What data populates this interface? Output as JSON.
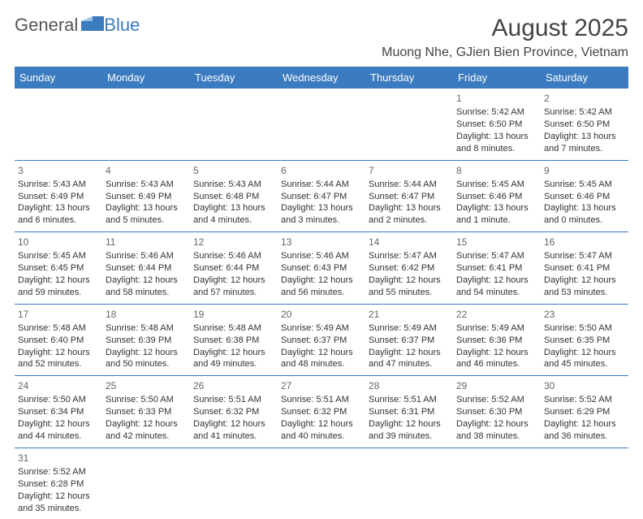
{
  "logo": {
    "partA": "General",
    "partB": "Blue"
  },
  "title": "August 2025",
  "location": "Muong Nhe, GJien Bien Province, Vietnam",
  "colors": {
    "header_bg": "#3b7bbf",
    "header_fg": "#ffffff",
    "rule": "#3b7bbf",
    "text": "#333333"
  },
  "weekdays": [
    "Sunday",
    "Monday",
    "Tuesday",
    "Wednesday",
    "Thursday",
    "Friday",
    "Saturday"
  ],
  "weeks": [
    [
      null,
      null,
      null,
      null,
      null,
      {
        "n": "1",
        "sr": "Sunrise: 5:42 AM",
        "ss": "Sunset: 6:50 PM",
        "dl": "Daylight: 13 hours and 8 minutes."
      },
      {
        "n": "2",
        "sr": "Sunrise: 5:42 AM",
        "ss": "Sunset: 6:50 PM",
        "dl": "Daylight: 13 hours and 7 minutes."
      }
    ],
    [
      {
        "n": "3",
        "sr": "Sunrise: 5:43 AM",
        "ss": "Sunset: 6:49 PM",
        "dl": "Daylight: 13 hours and 6 minutes."
      },
      {
        "n": "4",
        "sr": "Sunrise: 5:43 AM",
        "ss": "Sunset: 6:49 PM",
        "dl": "Daylight: 13 hours and 5 minutes."
      },
      {
        "n": "5",
        "sr": "Sunrise: 5:43 AM",
        "ss": "Sunset: 6:48 PM",
        "dl": "Daylight: 13 hours and 4 minutes."
      },
      {
        "n": "6",
        "sr": "Sunrise: 5:44 AM",
        "ss": "Sunset: 6:47 PM",
        "dl": "Daylight: 13 hours and 3 minutes."
      },
      {
        "n": "7",
        "sr": "Sunrise: 5:44 AM",
        "ss": "Sunset: 6:47 PM",
        "dl": "Daylight: 13 hours and 2 minutes."
      },
      {
        "n": "8",
        "sr": "Sunrise: 5:45 AM",
        "ss": "Sunset: 6:46 PM",
        "dl": "Daylight: 13 hours and 1 minute."
      },
      {
        "n": "9",
        "sr": "Sunrise: 5:45 AM",
        "ss": "Sunset: 6:46 PM",
        "dl": "Daylight: 13 hours and 0 minutes."
      }
    ],
    [
      {
        "n": "10",
        "sr": "Sunrise: 5:45 AM",
        "ss": "Sunset: 6:45 PM",
        "dl": "Daylight: 12 hours and 59 minutes."
      },
      {
        "n": "11",
        "sr": "Sunrise: 5:46 AM",
        "ss": "Sunset: 6:44 PM",
        "dl": "Daylight: 12 hours and 58 minutes."
      },
      {
        "n": "12",
        "sr": "Sunrise: 5:46 AM",
        "ss": "Sunset: 6:44 PM",
        "dl": "Daylight: 12 hours and 57 minutes."
      },
      {
        "n": "13",
        "sr": "Sunrise: 5:46 AM",
        "ss": "Sunset: 6:43 PM",
        "dl": "Daylight: 12 hours and 56 minutes."
      },
      {
        "n": "14",
        "sr": "Sunrise: 5:47 AM",
        "ss": "Sunset: 6:42 PM",
        "dl": "Daylight: 12 hours and 55 minutes."
      },
      {
        "n": "15",
        "sr": "Sunrise: 5:47 AM",
        "ss": "Sunset: 6:41 PM",
        "dl": "Daylight: 12 hours and 54 minutes."
      },
      {
        "n": "16",
        "sr": "Sunrise: 5:47 AM",
        "ss": "Sunset: 6:41 PM",
        "dl": "Daylight: 12 hours and 53 minutes."
      }
    ],
    [
      {
        "n": "17",
        "sr": "Sunrise: 5:48 AM",
        "ss": "Sunset: 6:40 PM",
        "dl": "Daylight: 12 hours and 52 minutes."
      },
      {
        "n": "18",
        "sr": "Sunrise: 5:48 AM",
        "ss": "Sunset: 6:39 PM",
        "dl": "Daylight: 12 hours and 50 minutes."
      },
      {
        "n": "19",
        "sr": "Sunrise: 5:48 AM",
        "ss": "Sunset: 6:38 PM",
        "dl": "Daylight: 12 hours and 49 minutes."
      },
      {
        "n": "20",
        "sr": "Sunrise: 5:49 AM",
        "ss": "Sunset: 6:37 PM",
        "dl": "Daylight: 12 hours and 48 minutes."
      },
      {
        "n": "21",
        "sr": "Sunrise: 5:49 AM",
        "ss": "Sunset: 6:37 PM",
        "dl": "Daylight: 12 hours and 47 minutes."
      },
      {
        "n": "22",
        "sr": "Sunrise: 5:49 AM",
        "ss": "Sunset: 6:36 PM",
        "dl": "Daylight: 12 hours and 46 minutes."
      },
      {
        "n": "23",
        "sr": "Sunrise: 5:50 AM",
        "ss": "Sunset: 6:35 PM",
        "dl": "Daylight: 12 hours and 45 minutes."
      }
    ],
    [
      {
        "n": "24",
        "sr": "Sunrise: 5:50 AM",
        "ss": "Sunset: 6:34 PM",
        "dl": "Daylight: 12 hours and 44 minutes."
      },
      {
        "n": "25",
        "sr": "Sunrise: 5:50 AM",
        "ss": "Sunset: 6:33 PM",
        "dl": "Daylight: 12 hours and 42 minutes."
      },
      {
        "n": "26",
        "sr": "Sunrise: 5:51 AM",
        "ss": "Sunset: 6:32 PM",
        "dl": "Daylight: 12 hours and 41 minutes."
      },
      {
        "n": "27",
        "sr": "Sunrise: 5:51 AM",
        "ss": "Sunset: 6:32 PM",
        "dl": "Daylight: 12 hours and 40 minutes."
      },
      {
        "n": "28",
        "sr": "Sunrise: 5:51 AM",
        "ss": "Sunset: 6:31 PM",
        "dl": "Daylight: 12 hours and 39 minutes."
      },
      {
        "n": "29",
        "sr": "Sunrise: 5:52 AM",
        "ss": "Sunset: 6:30 PM",
        "dl": "Daylight: 12 hours and 38 minutes."
      },
      {
        "n": "30",
        "sr": "Sunrise: 5:52 AM",
        "ss": "Sunset: 6:29 PM",
        "dl": "Daylight: 12 hours and 36 minutes."
      }
    ],
    [
      {
        "n": "31",
        "sr": "Sunrise: 5:52 AM",
        "ss": "Sunset: 6:28 PM",
        "dl": "Daylight: 12 hours and 35 minutes."
      },
      null,
      null,
      null,
      null,
      null,
      null
    ]
  ]
}
